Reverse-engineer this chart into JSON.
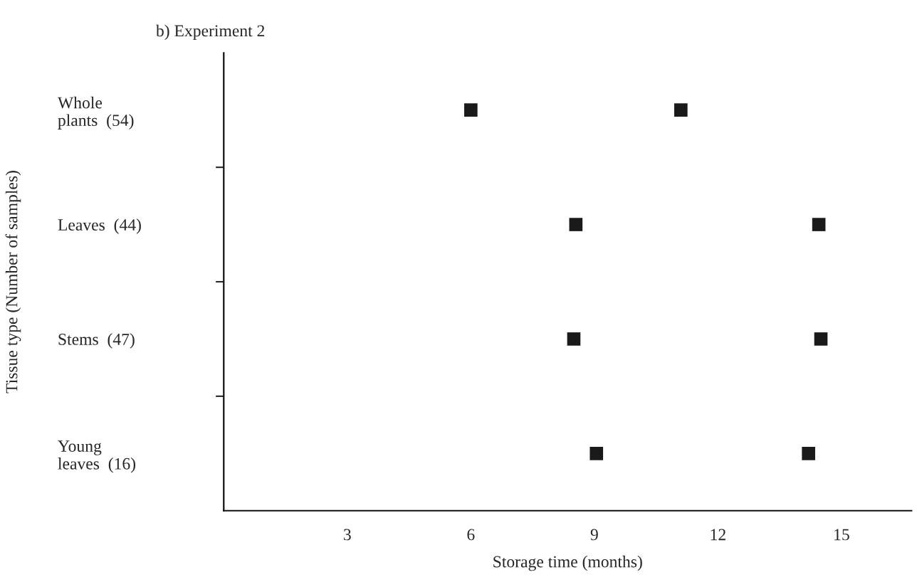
{
  "chart_data": {
    "type": "scatter",
    "orientation": "horizontal",
    "title": "b) Experiment 2",
    "xlabel": "Storage time (months)",
    "ylabel": "Tissue type (Number of samples)",
    "categories": [
      "Whole\nplants  (54)",
      "Leaves  (44)",
      "Stems  (47)",
      "Young\nleaves  (16)"
    ],
    "series": [
      {
        "color": "#1a1a1a",
        "values": [
          6.0,
          8.55,
          8.5,
          9.05
        ]
      },
      {
        "color": "#1a1a1a",
        "values": [
          11.1,
          14.45,
          14.5,
          14.2
        ]
      }
    ],
    "xlim": [
      0,
      16.7
    ],
    "xticks": [
      3,
      6,
      9,
      12,
      15
    ],
    "marker": "square",
    "grid": false,
    "legend": false
  }
}
